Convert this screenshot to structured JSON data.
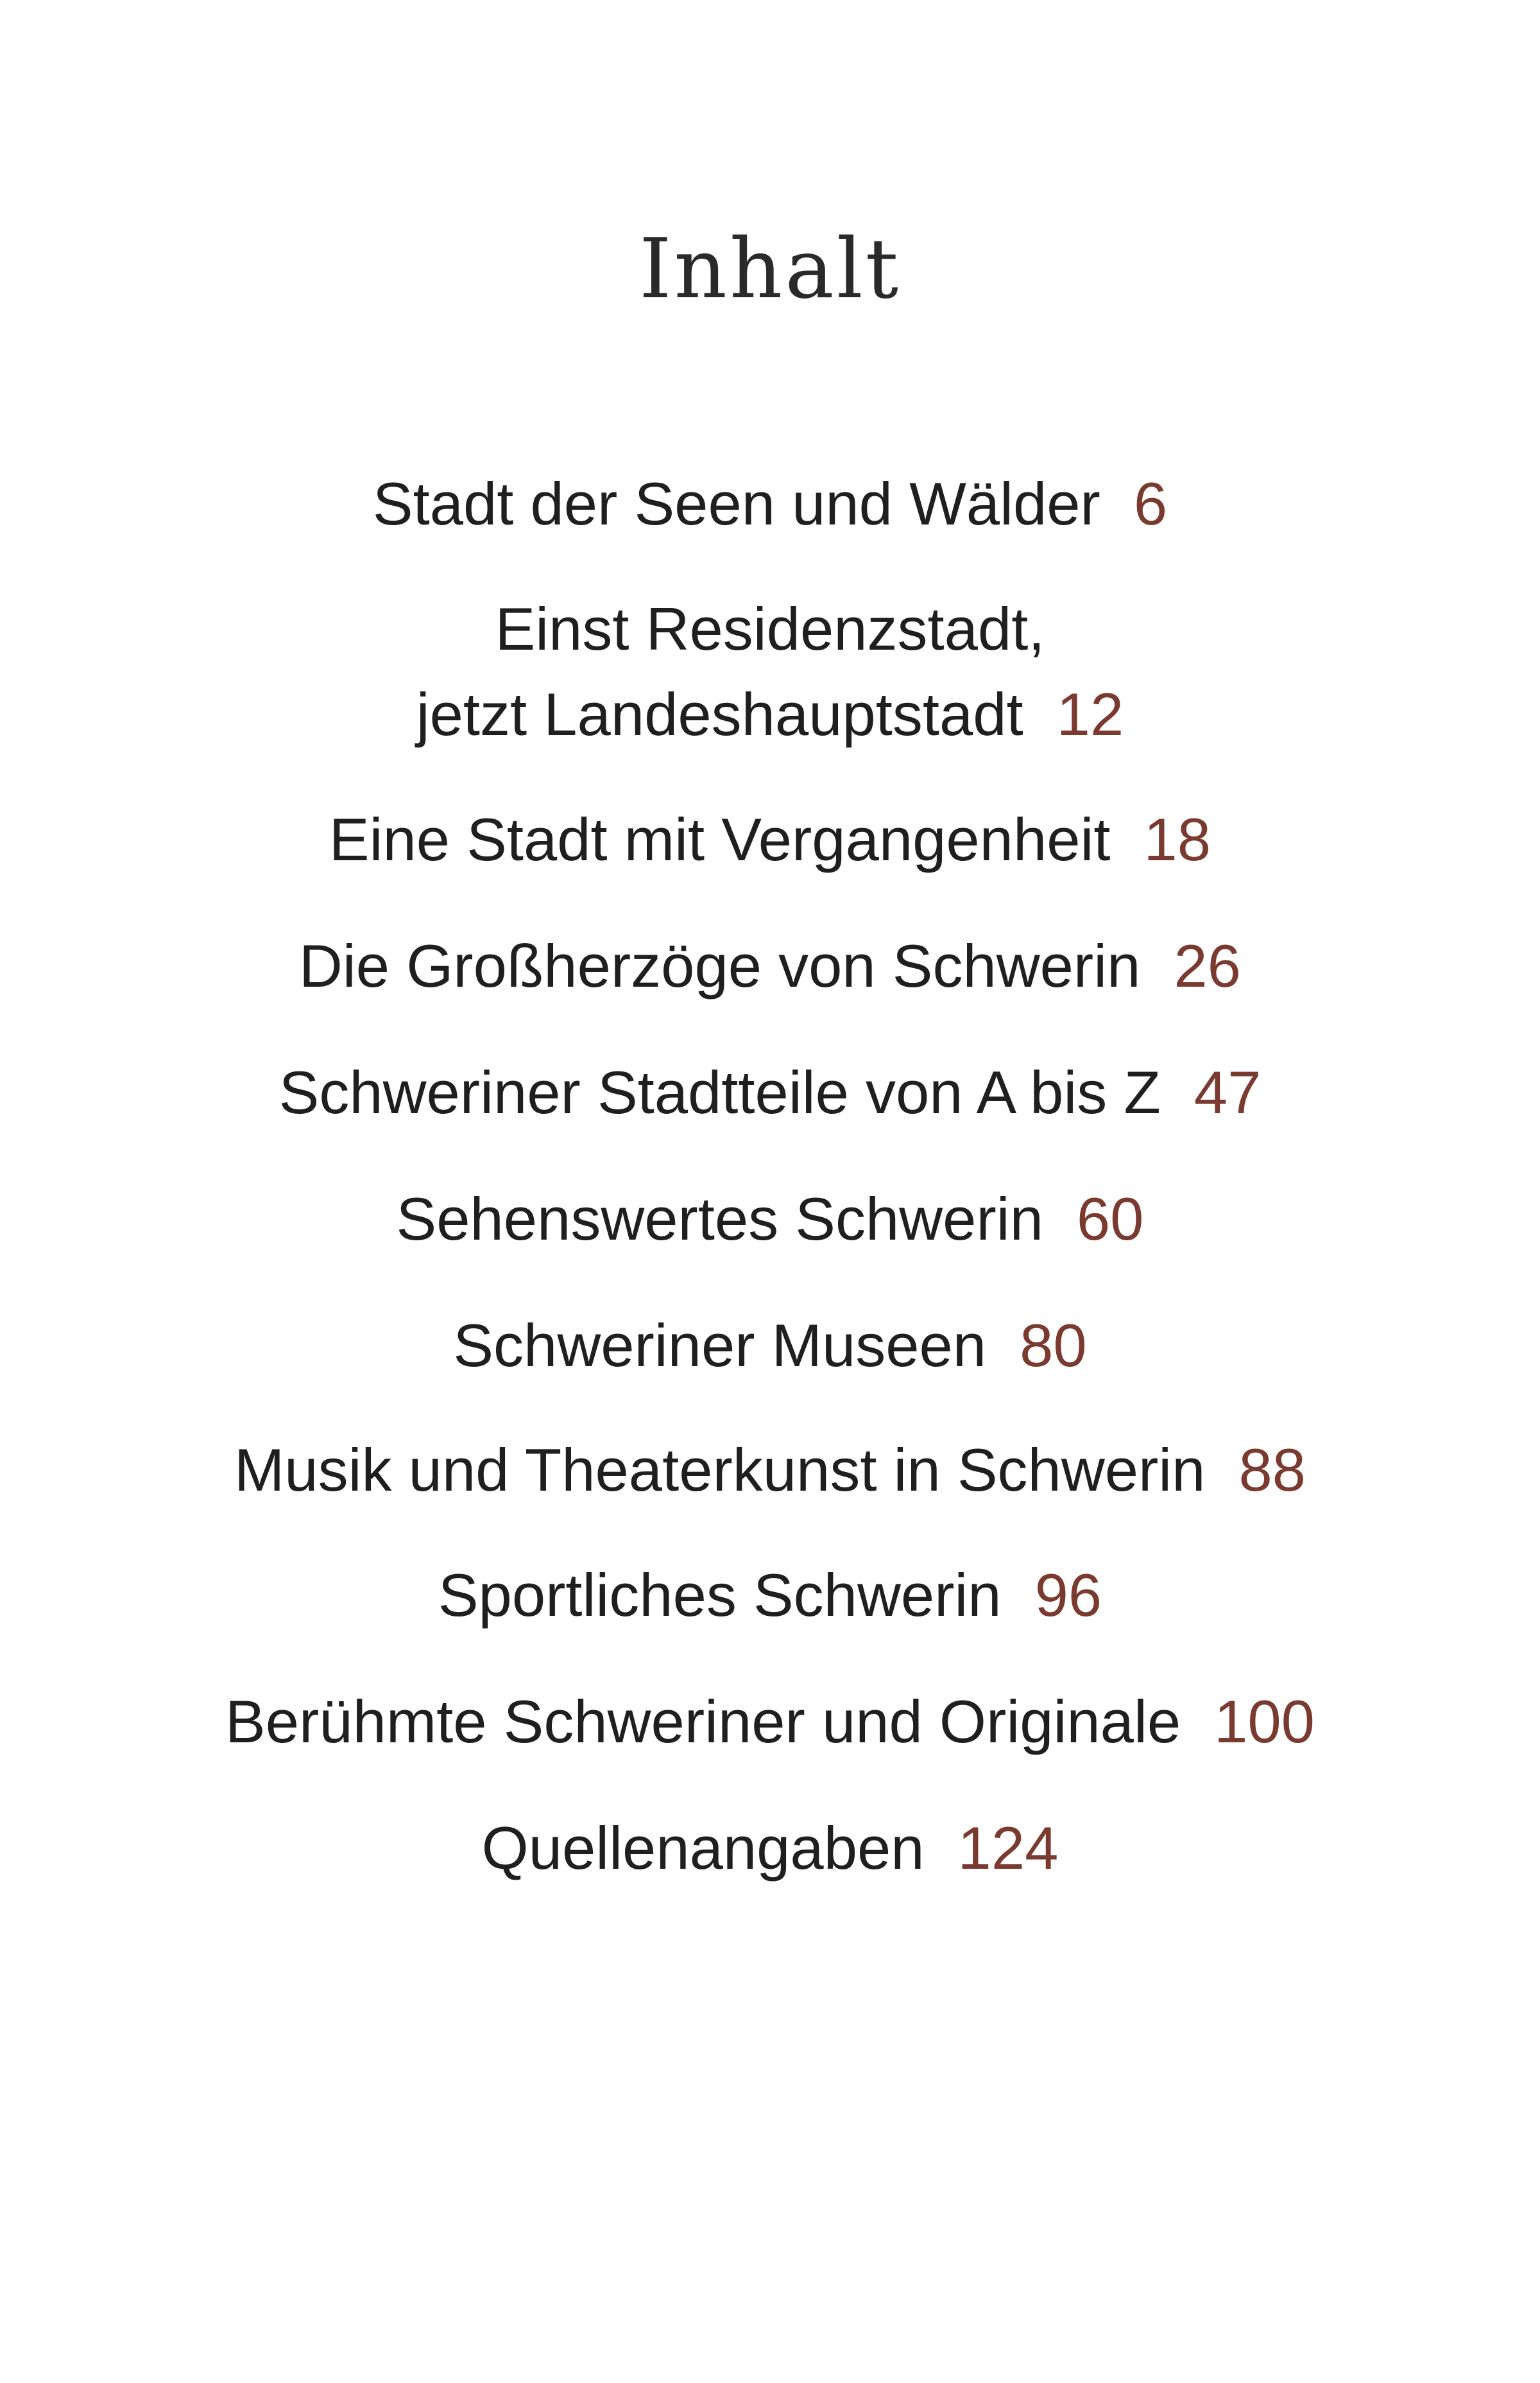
{
  "title": "Inhalt",
  "accent_color": "#7a3a30",
  "entries": [
    {
      "title": "Stadt der Seen und Wälder",
      "page": "6"
    },
    {
      "title_line1": "Einst Residenzstadt,",
      "title": "jetzt Landeshauptstadt",
      "page": "12"
    },
    {
      "title": "Eine Stadt mit Vergangenheit",
      "page": "18"
    },
    {
      "title": "Die Großherzöge von Schwerin",
      "page": "26"
    },
    {
      "title": "Schweriner Stadtteile von A bis Z",
      "page": "47"
    },
    {
      "title": "Sehenswertes Schwerin",
      "page": "60"
    },
    {
      "title": "Schweriner Museen",
      "page": "80"
    },
    {
      "title": "Musik und Theaterkunst in Schwerin",
      "page": "88"
    },
    {
      "title": "Sportliches Schwerin",
      "page": "96"
    },
    {
      "title": "Berühmte Schweriner und Originale",
      "page": "100"
    },
    {
      "title": "Quellenangaben",
      "page": "124"
    }
  ]
}
